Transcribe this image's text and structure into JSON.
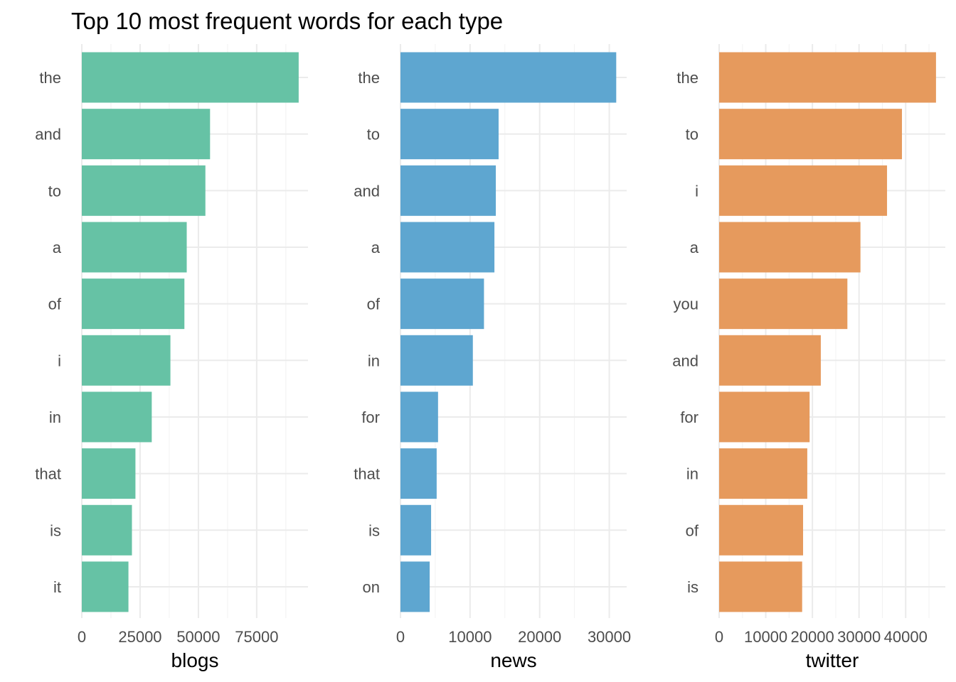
{
  "chart_data": {
    "type": "bar",
    "orientation": "horizontal",
    "title": "Top 10 most frequent words for each type",
    "grid": true,
    "legend": "none",
    "panels": [
      {
        "xlabel": "blogs",
        "color": "#66c2a5",
        "xlim": [
          0,
          97000
        ],
        "ticks": [
          0,
          25000,
          50000,
          75000
        ],
        "tick_labels": [
          "0",
          "25000",
          "50000",
          "75000"
        ],
        "categories": [
          "the",
          "and",
          "to",
          "a",
          "of",
          "i",
          "in",
          "that",
          "is",
          "it"
        ],
        "values": [
          93000,
          55000,
          53000,
          45000,
          44000,
          38000,
          30000,
          23000,
          21500,
          20000
        ]
      },
      {
        "xlabel": "news",
        "color": "#5ea6d0",
        "xlim": [
          0,
          32500
        ],
        "ticks": [
          0,
          10000,
          20000,
          30000
        ],
        "tick_labels": [
          "0",
          "10000",
          "20000",
          "30000"
        ],
        "categories": [
          "the",
          "to",
          "and",
          "a",
          "of",
          "in",
          "for",
          "that",
          "is",
          "on"
        ],
        "values": [
          31000,
          14100,
          13700,
          13500,
          12000,
          10400,
          5400,
          5200,
          4400,
          4200
        ]
      },
      {
        "xlabel": "twitter",
        "color": "#e69a5d",
        "xlim": [
          0,
          48500
        ],
        "ticks": [
          0,
          10000,
          20000,
          30000,
          40000
        ],
        "tick_labels": [
          "0",
          "10000",
          "20000",
          "30000",
          "40000"
        ],
        "categories": [
          "the",
          "to",
          "i",
          "a",
          "you",
          "and",
          "for",
          "in",
          "of",
          "is"
        ],
        "values": [
          46500,
          39200,
          36000,
          30300,
          27500,
          21800,
          19400,
          18900,
          18000,
          17800
        ]
      }
    ]
  }
}
